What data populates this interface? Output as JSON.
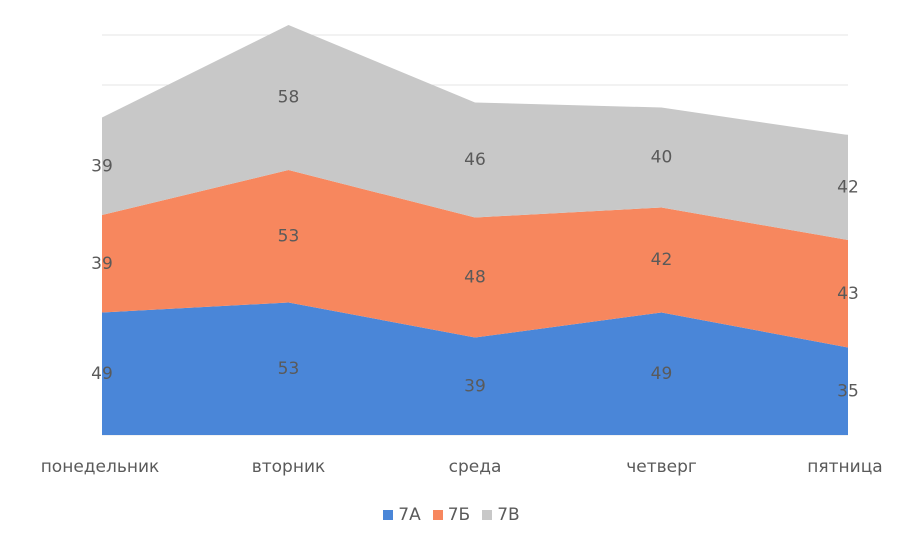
{
  "chart_data": {
    "type": "area",
    "stacked": true,
    "categories": [
      "понедельник",
      "вторник",
      "среда",
      "четверг",
      "пятница"
    ],
    "series": [
      {
        "name": "7А",
        "values": [
          49,
          53,
          39,
          49,
          35
        ],
        "color": "#4a86d8"
      },
      {
        "name": "7Б",
        "values": [
          39,
          53,
          48,
          42,
          43
        ],
        "color": "#f7875e"
      },
      {
        "name": "7В",
        "values": [
          39,
          58,
          46,
          40,
          42
        ],
        "color": "#c8c8c8"
      }
    ],
    "ylim": [
      0,
      160
    ],
    "grid": true,
    "legend_position": "bottom"
  }
}
